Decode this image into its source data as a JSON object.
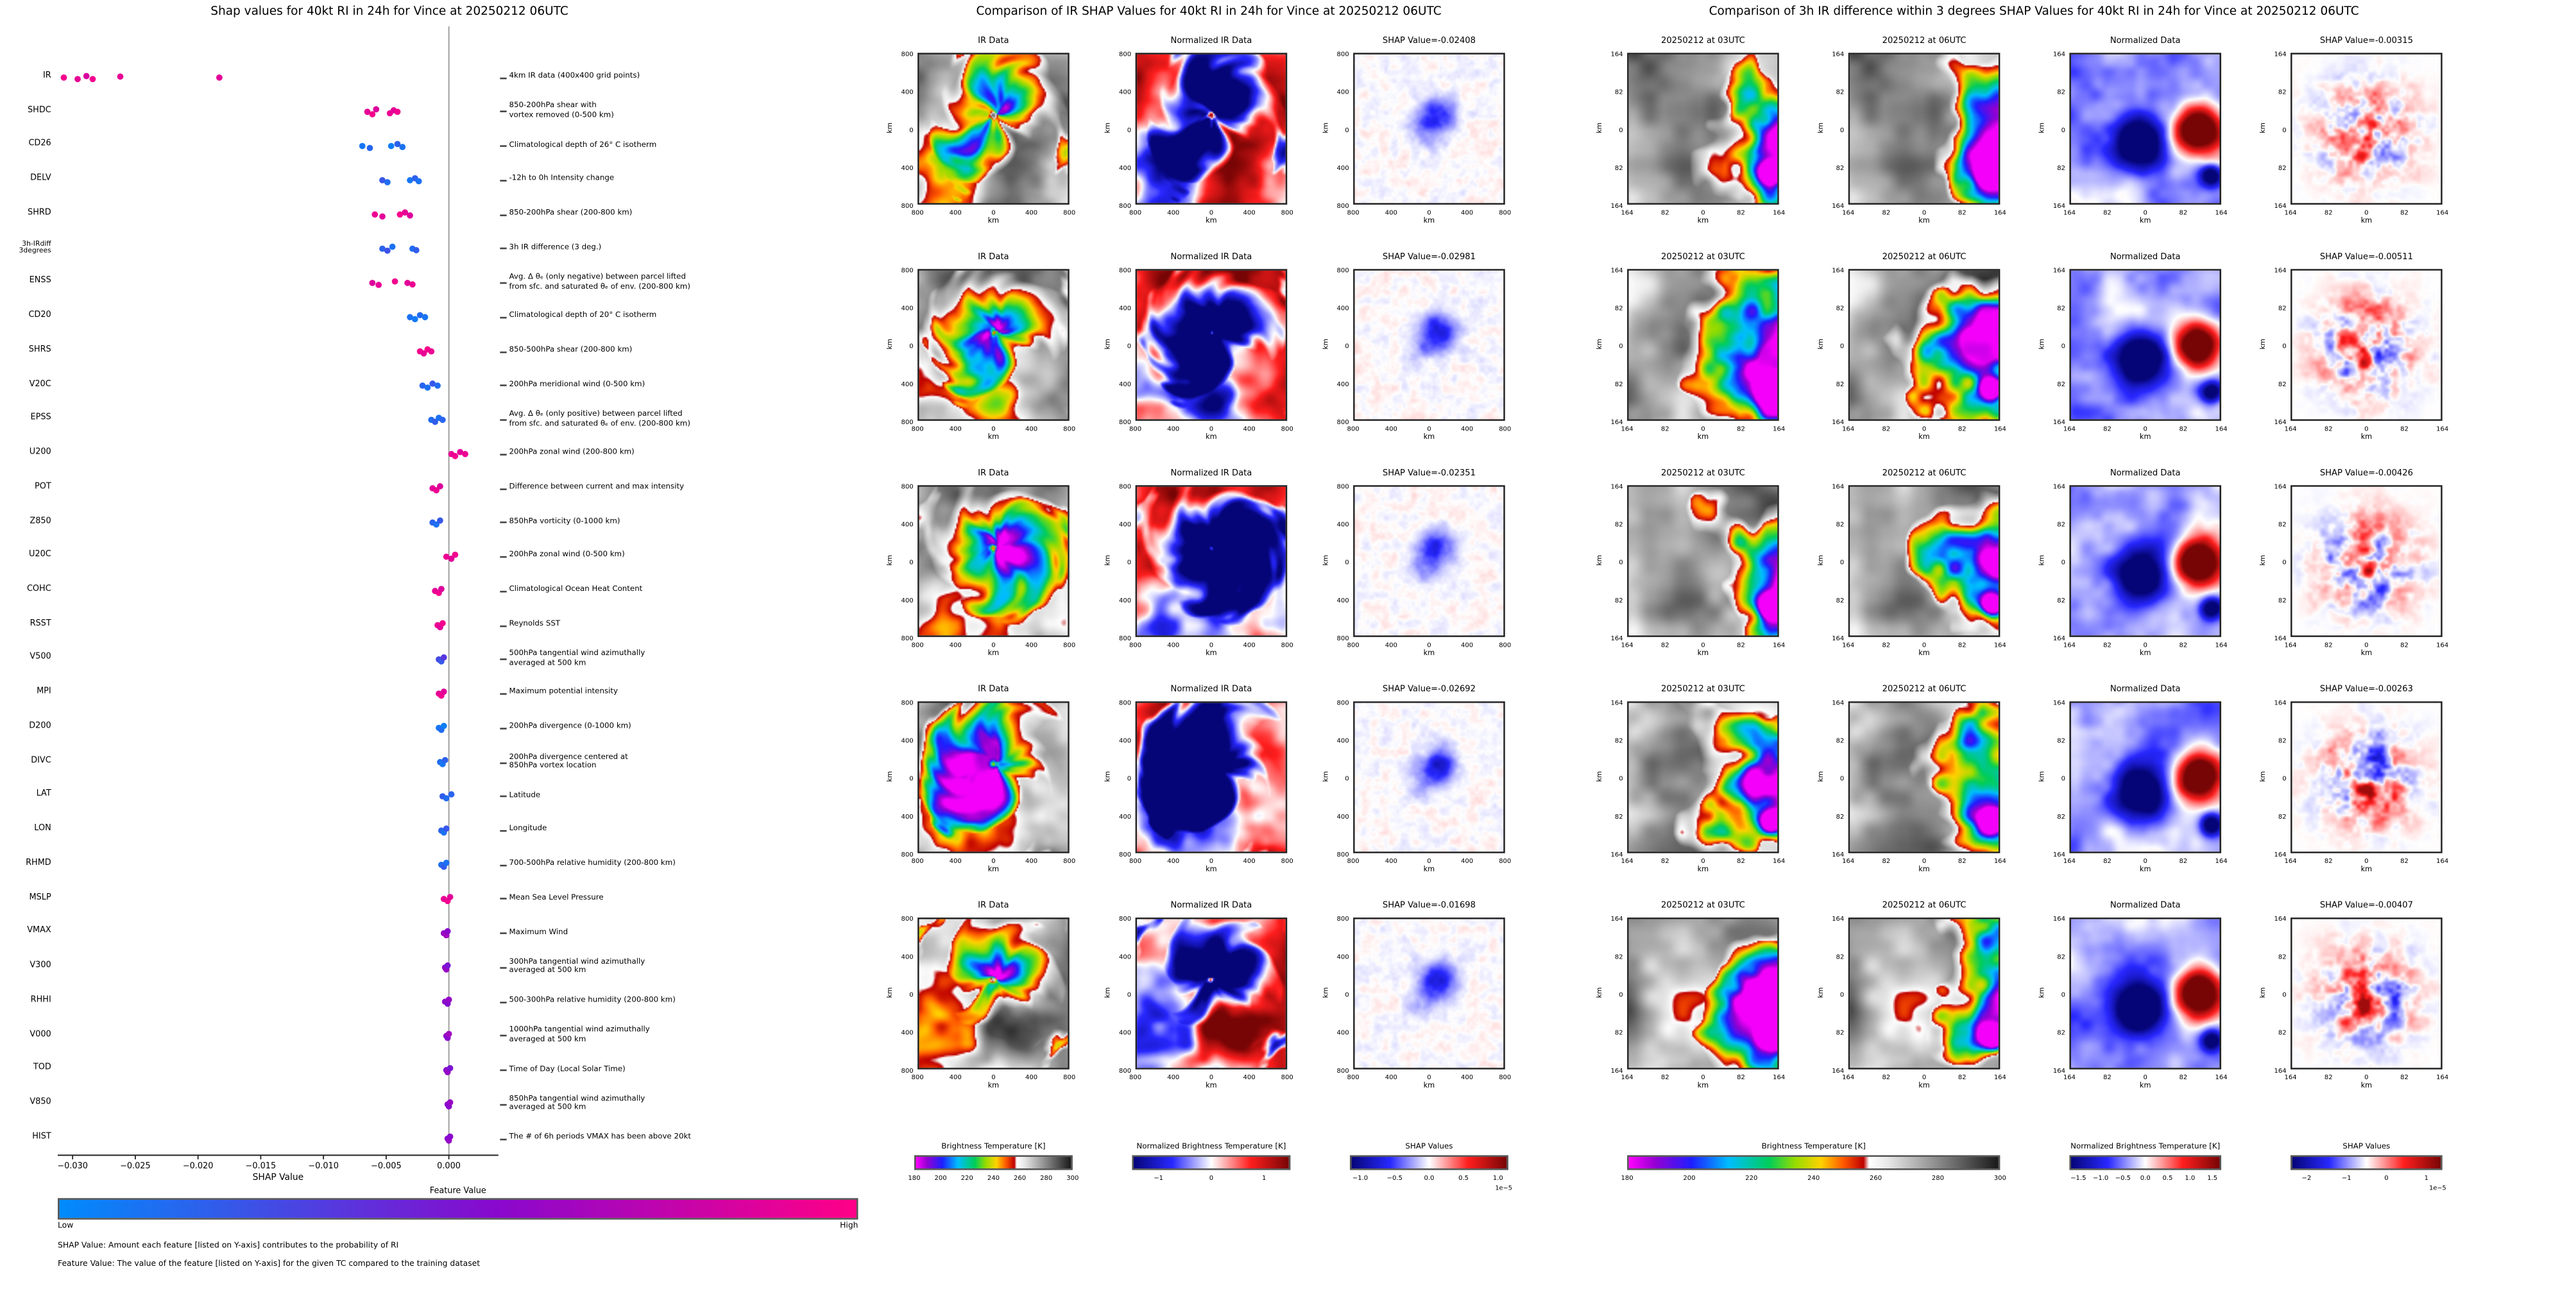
{
  "figure": {
    "background": "#ffffff"
  },
  "chart_data": [
    {
      "id": "shap_beeswarm",
      "type": "scatter",
      "subtype": "shap-beeswarm",
      "title": "Shap values for 40kt RI in 24h for Vince at 20250212 06UTC",
      "xlabel": "SHAP Value",
      "xlim": [
        -0.0315,
        0.004
      ],
      "xticks": [
        -0.03,
        -0.025,
        -0.02,
        -0.015,
        -0.01,
        -0.005,
        0.0
      ],
      "xtick_labels": [
        "−0.030",
        "−0.025",
        "−0.020",
        "−0.015",
        "−0.010",
        "−0.005",
        "0.000"
      ],
      "grid": "zero-line-only",
      "colorbar": {
        "title": "Feature Value",
        "low": "Low",
        "high": "High",
        "colors": [
          "#008bfb",
          "#8908cd",
          "#ff0087"
        ]
      },
      "footnotes": [
        "SHAP Value: Amount each feature [listed on Y-axis] contributes to the probability of RI",
        "Feature Value: The value of the feature [listed on Y-axis] for the given TC compared to the training dataset"
      ],
      "features": [
        {
          "name": "IR",
          "desc": "4km IR data (400x400 grid points)",
          "points": [
            [
              -0.0307,
              0.96,
              0
            ],
            [
              -0.0296,
              0.9,
              0.3
            ],
            [
              -0.0289,
              0.84,
              -0.3
            ],
            [
              -0.0284,
              0.95,
              0.3
            ],
            [
              -0.0262,
              0.9,
              -0.2
            ],
            [
              -0.0183,
              0.88,
              0
            ]
          ]
        },
        {
          "name": "SHDC",
          "desc": "850-200hPa shear with\nvortex removed (0-500 km)",
          "points": [
            [
              -0.0065,
              0.9,
              0
            ],
            [
              -0.0061,
              0.96,
              0.5
            ],
            [
              -0.0058,
              0.85,
              -0.5
            ],
            [
              -0.0047,
              0.92,
              0.3
            ],
            [
              -0.0044,
              0.88,
              -0.3
            ],
            [
              -0.0041,
              0.95,
              0
            ]
          ]
        },
        {
          "name": "CD26",
          "desc": "Climatological depth of 26° C isotherm",
          "points": [
            [
              -0.0069,
              0.08,
              0
            ],
            [
              -0.0063,
              0.14,
              0.4
            ],
            [
              -0.0046,
              0.05,
              0
            ],
            [
              -0.0041,
              0.16,
              -0.4
            ],
            [
              -0.0037,
              0.1,
              0.2
            ]
          ]
        },
        {
          "name": "DELV",
          "desc": "-12h to 0h Intensity change",
          "points": [
            [
              -0.0053,
              0.2,
              0
            ],
            [
              -0.0049,
              0.12,
              0.4
            ],
            [
              -0.0031,
              0.08,
              0
            ],
            [
              -0.0027,
              0.16,
              -0.4
            ],
            [
              -0.0024,
              0.1,
              0.2
            ]
          ]
        },
        {
          "name": "SHRD",
          "desc": "850-200hPa shear (200-800 km)",
          "points": [
            [
              -0.0059,
              0.92,
              0
            ],
            [
              -0.0053,
              0.88,
              0.4
            ],
            [
              -0.0039,
              0.96,
              0
            ],
            [
              -0.0035,
              0.9,
              -0.4
            ],
            [
              -0.0031,
              0.85,
              0.2
            ]
          ]
        },
        {
          "name": "3h-IRdiff\n3degrees",
          "desc": "3h IR difference (3 deg.)",
          "points": [
            [
              -0.0053,
              0.16,
              0
            ],
            [
              -0.0049,
              0.22,
              0.4
            ],
            [
              -0.0045,
              0.1,
              -0.4
            ],
            [
              -0.0029,
              0.12,
              0
            ],
            [
              -0.0026,
              0.18,
              0.3
            ]
          ]
        },
        {
          "name": "ENSS",
          "desc": "Avg. Δ θₑ (only negative) between parcel lifted\nfrom sfc. and saturated θₑ of env. (200-800 km)",
          "points": [
            [
              -0.0061,
              0.85,
              0
            ],
            [
              -0.0056,
              0.9,
              0.4
            ],
            [
              -0.0043,
              0.95,
              -0.3
            ],
            [
              -0.0033,
              0.88,
              0
            ],
            [
              -0.0029,
              0.92,
              0.3
            ]
          ]
        },
        {
          "name": "CD20",
          "desc": "Climatological depth of 20° C isotherm",
          "points": [
            [
              -0.0031,
              0.1,
              0
            ],
            [
              -0.0027,
              0.06,
              0.4
            ],
            [
              -0.0023,
              0.13,
              -0.4
            ],
            [
              -0.0019,
              0.09,
              0
            ]
          ]
        },
        {
          "name": "SHRS",
          "desc": "850-500hPa shear (200-800 km)",
          "points": [
            [
              -0.0023,
              0.95,
              0
            ],
            [
              -0.002,
              0.9,
              0.4
            ],
            [
              -0.0017,
              0.97,
              -0.4
            ],
            [
              -0.0014,
              0.92,
              0
            ]
          ]
        },
        {
          "name": "V20C",
          "desc": "200hPa meridional wind (0-500 km)",
          "points": [
            [
              -0.0021,
              0.15,
              0
            ],
            [
              -0.0017,
              0.1,
              0.4
            ],
            [
              -0.0013,
              0.2,
              -0.4
            ],
            [
              -0.0009,
              0.12,
              0
            ]
          ]
        },
        {
          "name": "EPSS",
          "desc": "Avg. Δ θₑ (only positive) between parcel lifted\nfrom sfc. and saturated θₑ of env. (200-800 km)",
          "points": [
            [
              -0.0014,
              0.12,
              0
            ],
            [
              -0.0011,
              0.18,
              0.4
            ],
            [
              -0.0008,
              0.1,
              -0.4
            ],
            [
              -0.0005,
              0.15,
              0
            ]
          ]
        },
        {
          "name": "U200",
          "desc": "200hPa zonal wind (200-800 km)",
          "points": [
            [
              0.0002,
              0.9,
              0
            ],
            [
              0.0005,
              0.95,
              0.4
            ],
            [
              0.0009,
              0.88,
              -0.4
            ],
            [
              0.0013,
              0.93,
              0
            ]
          ]
        },
        {
          "name": "POT",
          "desc": "Difference between current and max intensity",
          "points": [
            [
              -0.0013,
              0.88,
              0
            ],
            [
              -0.001,
              0.93,
              0.4
            ],
            [
              -0.0007,
              0.85,
              -0.4
            ]
          ]
        },
        {
          "name": "Z850",
          "desc": "850hPa vorticity (0-1000 km)",
          "points": [
            [
              -0.0013,
              0.15,
              0
            ],
            [
              -0.001,
              0.1,
              0.4
            ],
            [
              -0.0007,
              0.2,
              -0.4
            ]
          ]
        },
        {
          "name": "U20C",
          "desc": "200hPa zonal wind (0-500 km)",
          "points": [
            [
              -0.0002,
              0.92,
              0
            ],
            [
              0.0002,
              0.88,
              0.4
            ],
            [
              0.0005,
              0.95,
              -0.4
            ]
          ]
        },
        {
          "name": "COHC",
          "desc": "Climatological Ocean Heat Content",
          "points": [
            [
              -0.0011,
              0.9,
              0
            ],
            [
              -0.0008,
              0.95,
              0.4
            ],
            [
              -0.0006,
              0.85,
              -0.4
            ]
          ]
        },
        {
          "name": "RSST",
          "desc": "Reynolds SST",
          "points": [
            [
              -0.0009,
              0.92,
              0
            ],
            [
              -0.0007,
              0.88,
              0.4
            ],
            [
              -0.0005,
              0.95,
              -0.4
            ]
          ]
        },
        {
          "name": "V500",
          "desc": "500hPa tangential wind azimuthally\naveraged at 500 km",
          "points": [
            [
              -0.0008,
              0.25,
              0
            ],
            [
              -0.0006,
              0.2,
              0.4
            ],
            [
              -0.0004,
              0.32,
              -0.4
            ]
          ]
        },
        {
          "name": "MPI",
          "desc": "Maximum potential intensity",
          "points": [
            [
              -0.0008,
              0.9,
              0
            ],
            [
              -0.0006,
              0.94,
              0.4
            ],
            [
              -0.0004,
              0.87,
              -0.4
            ]
          ]
        },
        {
          "name": "D200",
          "desc": "200hPa divergence (0-1000 km)",
          "points": [
            [
              -0.0008,
              0.08,
              0
            ],
            [
              -0.0006,
              0.12,
              0.4
            ],
            [
              -0.0004,
              0.05,
              -0.4
            ]
          ]
        },
        {
          "name": "DIVC",
          "desc": "200hPa divergence centered at\n850hPa vortex location",
          "points": [
            [
              -0.0007,
              0.12,
              0
            ],
            [
              -0.0005,
              0.08,
              0.4
            ],
            [
              -0.0003,
              0.16,
              -0.4
            ]
          ]
        },
        {
          "name": "LAT",
          "desc": "Latitude",
          "points": [
            [
              -0.0005,
              0.18,
              0
            ],
            [
              -0.0002,
              0.12,
              0.4
            ],
            [
              0.0002,
              0.15,
              -0.4
            ]
          ]
        },
        {
          "name": "LON",
          "desc": "Longitude",
          "points": [
            [
              -0.0006,
              0.15,
              0
            ],
            [
              -0.0004,
              0.1,
              0.4
            ],
            [
              -0.0002,
              0.2,
              -0.4
            ]
          ]
        },
        {
          "name": "RHMD",
          "desc": "700-500hPa relative humidity (200-800 km)",
          "points": [
            [
              -0.0006,
              0.12,
              0
            ],
            [
              -0.0004,
              0.18,
              0.4
            ],
            [
              -0.0002,
              0.1,
              -0.4
            ]
          ]
        },
        {
          "name": "MSLP",
          "desc": "Mean Sea Level Pressure",
          "points": [
            [
              -0.0004,
              0.9,
              0
            ],
            [
              -0.0001,
              0.94,
              0.4
            ],
            [
              0.0001,
              0.88,
              -0.4
            ]
          ]
        },
        {
          "name": "VMAX",
          "desc": "Maximum Wind",
          "points": [
            [
              -0.0004,
              0.55,
              0
            ],
            [
              -0.0002,
              0.6,
              0.4
            ],
            [
              -0.0001,
              0.5,
              -0.4
            ]
          ]
        },
        {
          "name": "V300",
          "desc": "300hPa tangential wind azimuthally\naveraged at 500 km",
          "points": [
            [
              -0.0003,
              0.5,
              0
            ],
            [
              -0.0002,
              0.56,
              0.4
            ],
            [
              -0.0001,
              0.45,
              -0.4
            ]
          ]
        },
        {
          "name": "RHHI",
          "desc": "500-300hPa relative humidity (200-800 km)",
          "points": [
            [
              -0.0003,
              0.52,
              0
            ],
            [
              -0.0001,
              0.48,
              0.4
            ],
            [
              0.0,
              0.55,
              -0.4
            ]
          ]
        },
        {
          "name": "V000",
          "desc": "1000hPa tangential wind azimuthally\naveraged at 500 km",
          "points": [
            [
              -0.0002,
              0.55,
              0
            ],
            [
              -0.0001,
              0.5,
              0.4
            ],
            [
              0.0,
              0.6,
              -0.4
            ]
          ]
        },
        {
          "name": "TOD",
          "desc": "Time of Day (Local Solar Time)",
          "points": [
            [
              -0.0002,
              0.5,
              0
            ],
            [
              -0.0001,
              0.55,
              0.4
            ],
            [
              0.0001,
              0.45,
              -0.4
            ]
          ]
        },
        {
          "name": "V850",
          "desc": "850hPa tangential wind azimuthally\naveraged at 500 km",
          "points": [
            [
              -0.0001,
              0.52,
              0
            ],
            [
              0.0,
              0.5,
              0.4
            ],
            [
              0.0001,
              0.56,
              -0.4
            ]
          ]
        },
        {
          "name": "HIST",
          "desc": "The # of 6h periods VMAX has been above 20kt",
          "points": [
            [
              -0.0001,
              0.5,
              0
            ],
            [
              0.0,
              0.55,
              0.4
            ],
            [
              0.0001,
              0.5,
              -0.4
            ]
          ]
        }
      ]
    },
    {
      "id": "ir_shap_grid",
      "type": "heatmap",
      "title": "Comparison of IR SHAP Values for 40kt RI in 24h for Vince at 20250212 06UTC",
      "col_titles": [
        "IR Data",
        "Normalized IR Data"
      ],
      "shap_label_prefix": "SHAP Value=",
      "row_shap_values": [
        "-0.02408",
        "-0.02981",
        "-0.02351",
        "-0.02692",
        "-0.01698"
      ],
      "axis_ticks": [
        "800",
        "400",
        "0",
        "400",
        "800"
      ],
      "axis_label": "km",
      "colorbars": [
        {
          "label": "Brightness Temperature [K]",
          "style": "ir",
          "range": [
            180,
            300
          ],
          "tick_values": [
            180,
            200,
            220,
            240,
            260,
            280,
            300
          ],
          "tick_labels": [
            "180",
            "200",
            "220",
            "240",
            "260",
            "280",
            "300"
          ]
        },
        {
          "label": "Normalized Brightness Temperature [K]",
          "style": "seismic",
          "range": [
            -1.5,
            1.5
          ],
          "tick_values": [
            -1,
            0,
            1
          ],
          "tick_labels": [
            "−1",
            "0",
            "1"
          ]
        },
        {
          "label": "SHAP Values",
          "style": "seismic",
          "range": [
            -1.15,
            1.15
          ],
          "tick_values": [
            -1.0,
            -0.5,
            0.0,
            0.5,
            1.0
          ],
          "tick_labels": [
            "−1.0",
            "−0.5",
            "0.0",
            "0.5",
            "1.0"
          ],
          "scale_note": "1e−5"
        }
      ]
    },
    {
      "id": "ir3_diff_shap_grid",
      "type": "heatmap",
      "title": "Comparison of 3h IR difference within 3 degrees SHAP Values for 40kt RI in 24h for Vince at 20250212 06UTC",
      "col_titles": [
        "20250212 at 03UTC",
        "20250212 at 06UTC",
        "Normalized Data"
      ],
      "shap_label_prefix": "SHAP Value=",
      "row_shap_values": [
        "-0.00315",
        "-0.00511",
        "-0.00426",
        "-0.00263",
        "-0.00407"
      ],
      "axis_ticks": [
        "164",
        "82",
        "0",
        "82",
        "164"
      ],
      "axis_label": "km",
      "colorbars": [
        {
          "label": "Brightness Temperature [K]",
          "style": "ir",
          "range": [
            180,
            300
          ],
          "tick_values": [
            180,
            200,
            220,
            240,
            260,
            280,
            300
          ],
          "tick_labels": [
            "180",
            "200",
            "220",
            "240",
            "260",
            "280",
            "300"
          ]
        },
        {
          "label": "Normalized Brightness Temperature [K]",
          "style": "seismic",
          "range": [
            -1.7,
            1.7
          ],
          "tick_values": [
            -1.5,
            -1.0,
            -0.5,
            0.0,
            0.5,
            1.0,
            1.5
          ],
          "tick_labels": [
            "−1.5",
            "−1.0",
            "−0.5",
            "0.0",
            "0.5",
            "1.0",
            "1.5"
          ]
        },
        {
          "label": "SHAP Values",
          "style": "seismic",
          "range": [
            -2.4,
            1.4
          ],
          "tick_values": [
            -2,
            -1,
            0,
            1
          ],
          "tick_labels": [
            "−2",
            "−1",
            "0",
            "1"
          ],
          "scale_note": "1e−5"
        }
      ]
    }
  ]
}
